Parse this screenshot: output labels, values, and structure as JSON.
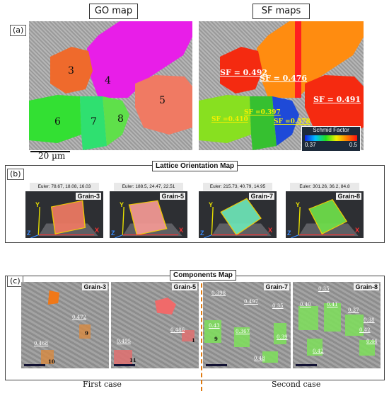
{
  "headers": {
    "go_map": "GO map",
    "sf_maps": "SF maps"
  },
  "panel_labels": {
    "a": "(a)",
    "b": "(b)",
    "c": "(c)"
  },
  "go_grains": [
    "3",
    "4",
    "5",
    "6",
    "7",
    "8"
  ],
  "sf_values": {
    "g3": "SF = 0.492",
    "g4": "SF = 0.476",
    "g5": "SF = 0.491",
    "g6": "SF =0.410",
    "g7": "SF =0.397",
    "g8": "SF =0.378"
  },
  "scale_bar": "20 µm",
  "schmid": {
    "title": "Schmid Factor",
    "min": "0.37",
    "max": "0.5"
  },
  "lattice": {
    "title": "Lattice Orientation Map",
    "cells": [
      {
        "euler": "Euler: 78.67, 18.08, 16.03",
        "name": "Grain-3",
        "color": "#f07a63"
      },
      {
        "euler": "Euler: 188.5, 24.47, 22.51",
        "name": "Grain-5",
        "color": "#f59a95"
      },
      {
        "euler": "Euler: 215.73, 40.79, 14.95",
        "name": "Grain-7",
        "color": "#6ee6b8"
      },
      {
        "euler": "Euler: 301.26, 36.2, 84.8",
        "name": "Grain-8",
        "color": "#6fe04a"
      }
    ],
    "axes": {
      "x": "X",
      "y": "Y",
      "z": "Z"
    }
  },
  "components": {
    "title": "Components Map",
    "cells": [
      {
        "name": "Grain-3",
        "highlight": "#f07818"
      },
      {
        "name": "Grain-5",
        "highlight": "#f06a6a"
      },
      {
        "name": "Grain-7",
        "highlight": "#7ee05a"
      },
      {
        "name": "Grain-8",
        "highlight": "#7ee05a"
      }
    ],
    "c1": {
      "v1": "0.472",
      "v2": "0.468",
      "n1": "9",
      "n2": "10"
    },
    "c2": {
      "v1": "0.495",
      "v2": "0.486",
      "n1": "11",
      "n2": "1"
    },
    "c3": {
      "v1": "0.398",
      "v2": "0.497",
      "v3": "0.35",
      "v4": "0.43",
      "v5": "0.367",
      "v6": "0.39",
      "v7": "0.48",
      "n1": "9"
    },
    "c4": {
      "v1": "0.35",
      "v2": "0.40",
      "v3": "0.41",
      "v4": "0.37",
      "v5": "0.38",
      "v6": "0.42",
      "v7": "0.42",
      "v8": "0.44"
    },
    "cases": {
      "first": "First case",
      "second": "Second case"
    }
  }
}
